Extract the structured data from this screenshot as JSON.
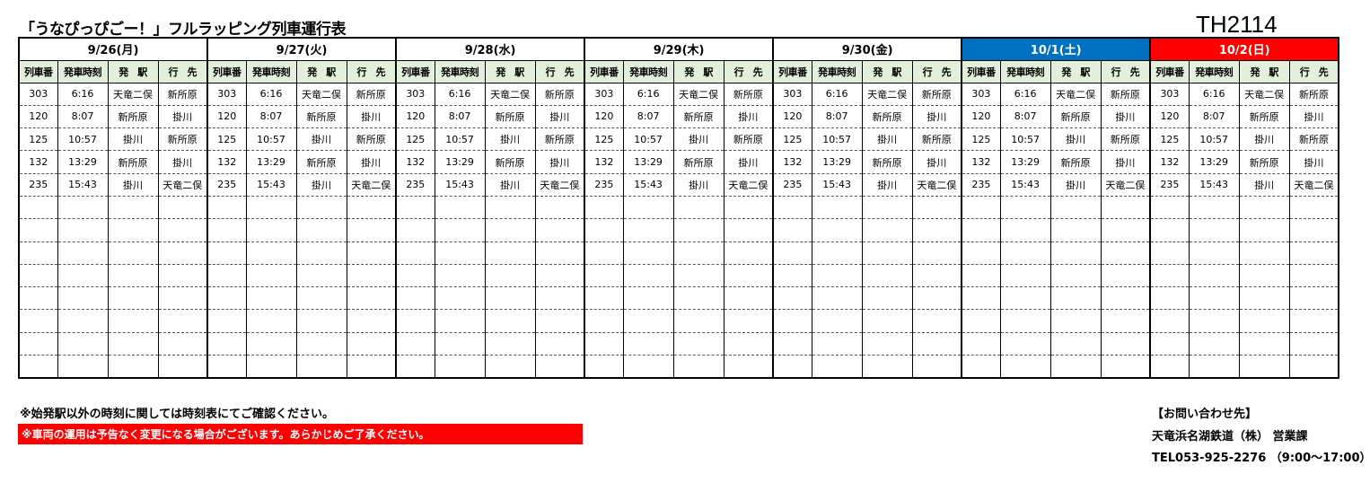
{
  "title": "「うなぴっぴごー！」フルラッピング列車運行表",
  "code": "TH2114",
  "columns": [
    "列車番",
    "発車時刻",
    "発　駅",
    "行　先"
  ],
  "days": [
    {
      "label": "9/26(月)",
      "bg": "#ffffff",
      "color": "#000000"
    },
    {
      "label": "9/27(火)",
      "bg": "#ffffff",
      "color": "#000000"
    },
    {
      "label": "9/28(水)",
      "bg": "#ffffff",
      "color": "#000000"
    },
    {
      "label": "9/29(木)",
      "bg": "#ffffff",
      "color": "#000000"
    },
    {
      "label": "9/30(金)",
      "bg": "#ffffff",
      "color": "#000000"
    },
    {
      "label": "10/1(土)",
      "bg": "#0070c0",
      "color": "#ffffff"
    },
    {
      "label": "10/2(日)",
      "bg": "#ff0000",
      "color": "#ffffff"
    }
  ],
  "rows": [
    [
      "303",
      "6:16",
      "天竜二俣",
      "新所原"
    ],
    [
      "120",
      "8:07",
      "新所原",
      "掛川"
    ],
    [
      "125",
      "10:57",
      "掛川",
      "新所原"
    ],
    [
      "132",
      "13:29",
      "新所原",
      "掛川"
    ],
    [
      "235",
      "15:43",
      "掛川",
      "天竜二俣"
    ]
  ],
  "empty_rows": 8,
  "notes": {
    "note1": "※始発駅以外の時刻に関しては時刻表にてご確認ください。",
    "note2": "※車両の運用は予告なく変更になる場合がございます。あらかじめご了承ください。"
  },
  "contact": {
    "heading": "【お問い合わせ先】",
    "company": "天竜浜名湖鉄道（株） 営業課",
    "phone": "TEL053-925-2276 （9:00〜17:00）"
  }
}
